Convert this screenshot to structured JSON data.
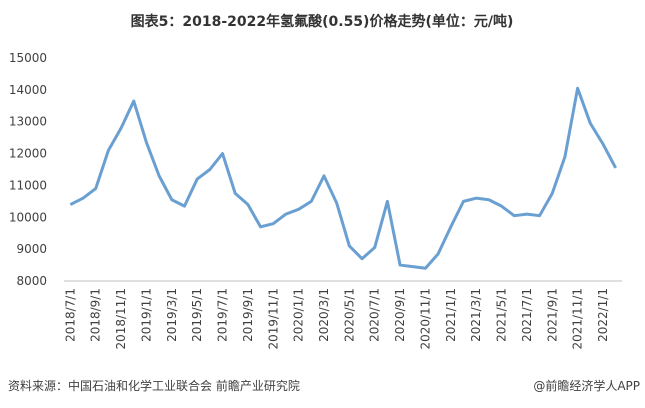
{
  "chart_data": {
    "type": "line",
    "title": "图表5：2018-2022年氢氟酸(0.55)价格走势(单位：元/吨)",
    "source": "资料来源：中国石油和化学工业联合会 前瞻产业研究院",
    "credit": "@前瞻经济学人APP",
    "categories": [
      "2018/7/1",
      null,
      "2018/9/1",
      null,
      "2018/11/1",
      null,
      "2019/1/1",
      null,
      "2019/3/1",
      null,
      "2019/5/1",
      null,
      "2019/7/1",
      null,
      "2019/9/1",
      null,
      "2019/11/1",
      null,
      "2020/1/1",
      null,
      "2020/3/1",
      null,
      "2020/5/1",
      null,
      "2020/7/1",
      null,
      "2020/9/1",
      null,
      "2020/11/1",
      null,
      "2021/1/1",
      null,
      "2021/3/1",
      null,
      "2021/5/1",
      null,
      "2021/7/1",
      null,
      "2021/9/1",
      null,
      "2021/11/1",
      null,
      "2022/1/1",
      null
    ],
    "values": [
      10400,
      10600,
      10900,
      12100,
      12800,
      13650,
      12350,
      11300,
      10550,
      10350,
      11200,
      11500,
      12000,
      10750,
      10400,
      9700,
      9800,
      10100,
      10250,
      10500,
      11300,
      10450,
      9100,
      8700,
      9050,
      10500,
      8500,
      8450,
      8400,
      8850,
      9700,
      10500,
      10600,
      10550,
      10350,
      10050,
      10100,
      10050,
      10750,
      11900,
      14050,
      12950,
      12300,
      11550
    ],
    "color": "#6a9fd2",
    "ylim": [
      8000,
      15000
    ],
    "yticks": [
      8000,
      9000,
      10000,
      11000,
      12000,
      13000,
      14000,
      15000
    ]
  }
}
